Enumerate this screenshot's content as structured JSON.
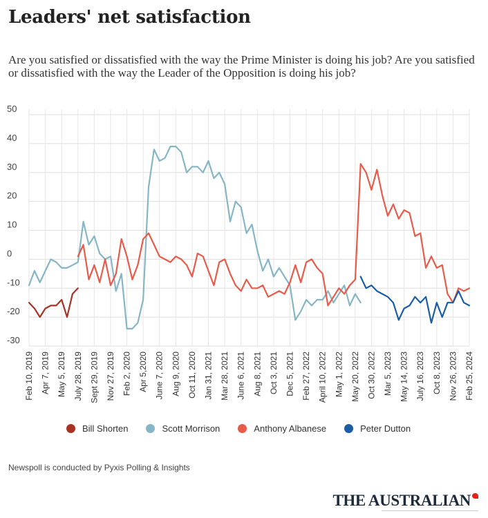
{
  "title": "Leaders' net satisfaction",
  "subtitle": "Are you satisfied or dissatisfied with the way the Prime Minister is doing his job? Are you satisfied or dissatisfied with the way the Leader of the Opposition is doing his job?",
  "footnote": "Newspoll is conducted by Pyxis Polling & Insights",
  "brand": "THE AUSTRALIAN",
  "chart_data": {
    "type": "line",
    "ylim": [
      -30,
      50
    ],
    "yticks": [
      50,
      40,
      30,
      20,
      10,
      0,
      -10,
      -20,
      -30
    ],
    "grid": true,
    "legend_position": "bottom",
    "xlabels": [
      {
        "label": "Feb 10, 2019",
        "i": 0
      },
      {
        "label": "Apr 7, 2019",
        "i": 3
      },
      {
        "label": "May 5, 2019",
        "i": 6
      },
      {
        "label": "July 28, 2019",
        "i": 9
      },
      {
        "label": "Sept 29, 2019",
        "i": 12
      },
      {
        "label": "Nov 27, 2019",
        "i": 15
      },
      {
        "label": "Feb 2, 2020",
        "i": 18
      },
      {
        "label": "Apr 5,2020",
        "i": 21
      },
      {
        "label": "June 7, 2020",
        "i": 24
      },
      {
        "label": "Aug 9, 2020",
        "i": 27
      },
      {
        "label": "Oct 11, 2020",
        "i": 30
      },
      {
        "label": "Jan 31, 2021",
        "i": 33
      },
      {
        "label": "Mar 28, 2021",
        "i": 36
      },
      {
        "label": "June 6, 2021",
        "i": 39
      },
      {
        "label": "Aug 8, 2021",
        "i": 42
      },
      {
        "label": "Oct 3, 2021",
        "i": 45
      },
      {
        "label": "Dec 5, 2021",
        "i": 48
      },
      {
        "label": "Feb 27, 2022",
        "i": 51
      },
      {
        "label": "April 10, 2022",
        "i": 54
      },
      {
        "label": "May 1, 2022",
        "i": 57
      },
      {
        "label": "May 20, 2022",
        "i": 60
      },
      {
        "label": "Oct 30, 2022",
        "i": 63
      },
      {
        "label": "Mar 5, 2023",
        "i": 66
      },
      {
        "label": "May 14, 2023",
        "i": 69
      },
      {
        "label": "July 16, 2023",
        "i": 72
      },
      {
        "label": "Oct 8, 2023",
        "i": 75
      },
      {
        "label": "Nov 26, 2023",
        "i": 78
      },
      {
        "label": "Feb 25, 2024",
        "i": 81
      }
    ],
    "n_points": 82,
    "series": [
      {
        "name": "Bill Shorten",
        "color": "#a83224",
        "start_index": 0,
        "values": [
          -15,
          -17,
          -20,
          -17,
          -16,
          -16,
          -14,
          -20,
          -12,
          -10
        ]
      },
      {
        "name": "Scott Morrison",
        "color": "#86b6c6",
        "start_index": 0,
        "values": [
          -9,
          -4,
          -8,
          -4,
          0,
          -1,
          -3,
          -3,
          -2,
          -1,
          13,
          5,
          8,
          2,
          0,
          1,
          -11,
          -5,
          -24,
          -24,
          -22,
          -14,
          25,
          38,
          34,
          35,
          39,
          39,
          37,
          30,
          32,
          32,
          30,
          34,
          28,
          30,
          26,
          13,
          20,
          18,
          9,
          12,
          3,
          -4,
          0,
          -6,
          -3,
          -6,
          -9,
          -21,
          -18,
          -14,
          -16,
          -14,
          -14,
          -11,
          -15,
          -12,
          -9,
          -16,
          -12,
          -15
        ]
      },
      {
        "name": "Anthony Albanese",
        "color": "#e85b4a",
        "start_index": 9,
        "values": [
          1,
          5,
          -7,
          -2,
          -8,
          0,
          -9,
          -5,
          7,
          1,
          -7,
          -2,
          7,
          9,
          5,
          1,
          0,
          -1,
          1,
          0,
          -2,
          -6,
          2,
          1,
          -4,
          -9,
          -1,
          0,
          -5,
          -9,
          -11,
          -7,
          -10,
          -10,
          -9,
          -13,
          -12,
          -11,
          -12,
          -8,
          -2,
          -8,
          -1,
          0,
          -3,
          -5,
          -16,
          -13,
          -10,
          -12,
          -9,
          -7,
          33,
          30,
          24,
          31,
          22,
          15,
          19,
          14,
          17,
          16,
          8,
          9,
          -3,
          1,
          -3,
          -2,
          -12,
          -15,
          -10,
          -11,
          -10
        ]
      },
      {
        "name": "Peter Dutton",
        "color": "#1a5da6",
        "start_index": 61,
        "values": [
          -6,
          -10,
          -9,
          -11,
          -12,
          -13,
          -15,
          -21,
          -17,
          -16,
          -13,
          -15,
          -13,
          -22,
          -15,
          -20,
          -15,
          -15,
          -11,
          -15,
          -16
        ]
      }
    ]
  }
}
